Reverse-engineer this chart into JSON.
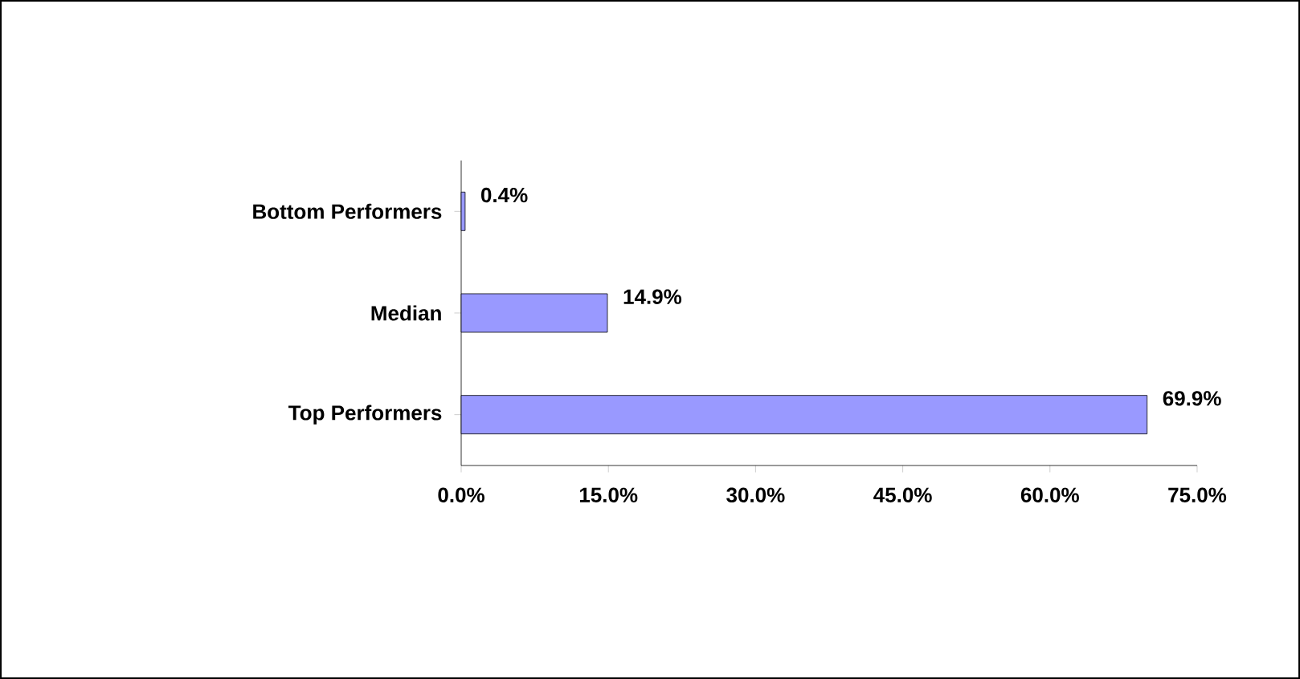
{
  "chart_data": {
    "type": "bar",
    "orientation": "horizontal",
    "categories": [
      "Bottom Performers",
      "Median",
      "Top Performers"
    ],
    "values": [
      0.4,
      14.9,
      69.9
    ],
    "value_labels": [
      "0.4%",
      "14.9%",
      "69.9%"
    ],
    "color": "#9999ff",
    "xlim": [
      0,
      75
    ],
    "xticks": [
      {
        "value": 0,
        "label": "0.0%"
      },
      {
        "value": 15,
        "label": "15.0%"
      },
      {
        "value": 30,
        "label": "30.0%"
      },
      {
        "value": 45,
        "label": "45.0%"
      },
      {
        "value": 60,
        "label": "60.0%"
      },
      {
        "value": 75,
        "label": "75.0%"
      }
    ]
  }
}
